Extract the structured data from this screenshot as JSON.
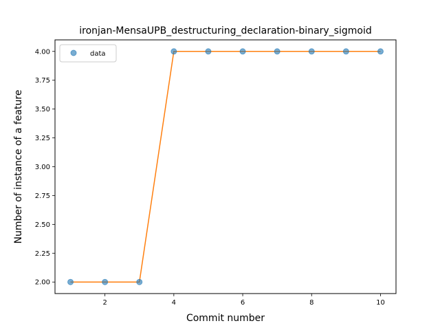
{
  "chart_data": {
    "type": "scatter",
    "title": "ironjan-MensaUPB_destructuring_declaration-binary_sigmoid",
    "xlabel": "Commit number",
    "ylabel": "Number of instance of a feature",
    "xlim": [
      0.55,
      10.45
    ],
    "ylim": [
      1.9,
      4.1
    ],
    "xticks": [
      2,
      4,
      6,
      8,
      10
    ],
    "yticks": [
      2.0,
      2.25,
      2.5,
      2.75,
      3.0,
      3.25,
      3.5,
      3.75,
      4.0
    ],
    "legend_position": "top-left",
    "grid": false,
    "series": [
      {
        "name": "data",
        "kind": "scatter",
        "color": "#1f77b4",
        "x": [
          1,
          2,
          3,
          4,
          5,
          6,
          7,
          8,
          9,
          10
        ],
        "y": [
          2,
          2,
          2,
          4,
          4,
          4,
          4,
          4,
          4,
          4
        ]
      },
      {
        "kind": "line",
        "color": "#ff7f0e",
        "x": [
          1,
          2,
          3,
          4,
          5,
          6,
          7,
          8,
          9,
          10
        ],
        "y": [
          2,
          2,
          2,
          4,
          4,
          4,
          4,
          4,
          4,
          4
        ]
      }
    ]
  }
}
